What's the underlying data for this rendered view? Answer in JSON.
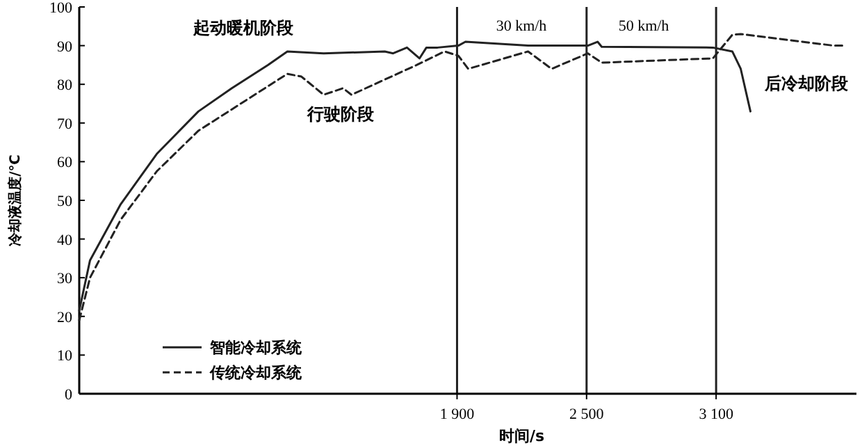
{
  "chart_data": {
    "type": "line",
    "xlabel": "时间/s",
    "ylabel": "冷却液温度/℃",
    "xlim": [
      150,
      3750
    ],
    "ylim": [
      0,
      100
    ],
    "xticks": [
      {
        "value": 1900,
        "label": "1 900"
      },
      {
        "value": 2500,
        "label": "2 500"
      },
      {
        "value": 3100,
        "label": "3 100"
      }
    ],
    "yticks": [
      0,
      10,
      20,
      30,
      40,
      50,
      60,
      70,
      80,
      90,
      100
    ],
    "grid": false,
    "legend": "bottom left",
    "series": [
      {
        "name": "智能冷却系统",
        "color": "#222222",
        "line_style": "solid",
        "x": [
          150,
          200,
          342,
          509,
          702,
          857,
          1024,
          1114,
          1282,
          1565,
          1604,
          1668,
          1726,
          1758,
          1810,
          1906,
          1939,
          2229,
          2506,
          2551,
          2570,
          3085,
          3175,
          3214,
          3259
        ],
        "values": [
          21.5,
          34.5,
          49,
          62,
          73,
          79,
          85,
          88.5,
          88,
          88.5,
          88,
          89.5,
          86.7,
          89.5,
          89.5,
          90,
          91,
          90,
          90,
          91,
          89.7,
          89.5,
          88.5,
          84,
          73
        ]
      },
      {
        "name": "传统冷却系统",
        "color": "#222222",
        "line_style": "dashed",
        "x": [
          150,
          200,
          342,
          509,
          702,
          940,
          1114,
          1179,
          1282,
          1372,
          1411,
          1713,
          1842,
          1906,
          1952,
          2229,
          2338,
          2506,
          2570,
          3085,
          3175,
          3214,
          3645,
          3690
        ],
        "values": [
          19,
          30,
          45,
          57.5,
          68,
          76.5,
          82.7,
          82,
          77.3,
          79,
          77.3,
          85,
          88.5,
          87.4,
          84,
          88.5,
          84,
          88,
          85.6,
          86.7,
          92.8,
          93,
          90,
          90
        ]
      }
    ],
    "ref_lines": [
      {
        "axis": "x",
        "value": 1900,
        "color": "#222222"
      },
      {
        "axis": "x",
        "value": 2500,
        "color": "#222222"
      },
      {
        "axis": "x",
        "value": 3100,
        "color": "#222222"
      }
    ],
    "annotations": [
      "起动暖机阶段",
      "行驶阶段",
      "30 km/h",
      "50 km/h",
      "后冷却阶段"
    ]
  }
}
